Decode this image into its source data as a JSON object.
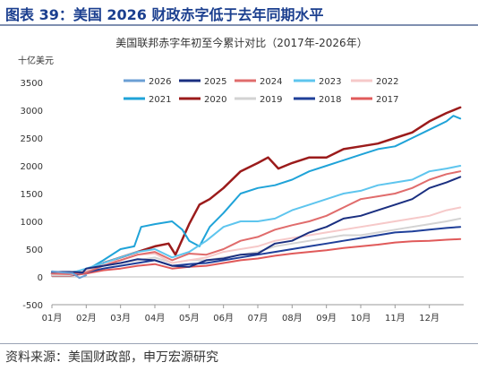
{
  "figure_title": "图表 39：美国 2026 财政赤字低于去年同期水平",
  "source": "资料来源：美国财政部，申万宏源研究",
  "chart_data": {
    "type": "line",
    "title": "美国联邦赤字年初至今累计对比（2017年-2026年）",
    "ylabel": "十亿美元",
    "ylim": [
      -500,
      3500
    ],
    "yticks": [
      -500,
      0,
      500,
      1000,
      1500,
      2000,
      2500,
      3000,
      3500
    ],
    "xlim": [
      0,
      12
    ],
    "xticks": [
      "01月",
      "02月",
      "03月",
      "04月",
      "05月",
      "06月",
      "07月",
      "08月",
      "09月",
      "10月",
      "11月",
      "12月"
    ],
    "legend_position": "top",
    "series": [
      {
        "name": "2026",
        "color": "#6b9fd4",
        "width": 2,
        "points": [
          [
            0,
            100
          ],
          [
            0.3,
            80
          ],
          [
            0.6,
            70
          ],
          [
            0.8,
            -20
          ],
          [
            1,
            30
          ]
        ]
      },
      {
        "name": "2025",
        "color": "#1a2f80",
        "width": 2,
        "points": [
          [
            0,
            90
          ],
          [
            0.5,
            90
          ],
          [
            0.9,
            80
          ],
          [
            1,
            150
          ],
          [
            1.5,
            200
          ],
          [
            2,
            250
          ],
          [
            2.5,
            320
          ],
          [
            3,
            300
          ],
          [
            3.5,
            200
          ],
          [
            4,
            180
          ],
          [
            4.5,
            300
          ],
          [
            5,
            330
          ],
          [
            5.5,
            400
          ],
          [
            6,
            420
          ],
          [
            6.5,
            600
          ],
          [
            7,
            650
          ],
          [
            7.5,
            800
          ],
          [
            8,
            900
          ],
          [
            8.5,
            1050
          ],
          [
            9,
            1100
          ],
          [
            9.5,
            1200
          ],
          [
            10,
            1300
          ],
          [
            10.5,
            1400
          ],
          [
            11,
            1600
          ],
          [
            11.5,
            1700
          ],
          [
            11.9,
            1800
          ]
        ]
      },
      {
        "name": "2024",
        "color": "#e06c6c",
        "width": 2,
        "points": [
          [
            0,
            60
          ],
          [
            0.5,
            50
          ],
          [
            1,
            80
          ],
          [
            1.5,
            200
          ],
          [
            2,
            300
          ],
          [
            2.5,
            400
          ],
          [
            3,
            450
          ],
          [
            3.5,
            300
          ],
          [
            4,
            420
          ],
          [
            4.5,
            400
          ],
          [
            5,
            500
          ],
          [
            5.5,
            650
          ],
          [
            6,
            720
          ],
          [
            6.5,
            850
          ],
          [
            7,
            930
          ],
          [
            7.5,
            1000
          ],
          [
            8,
            1100
          ],
          [
            8.5,
            1250
          ],
          [
            9,
            1400
          ],
          [
            9.5,
            1450
          ],
          [
            10,
            1500
          ],
          [
            10.5,
            1600
          ],
          [
            11,
            1750
          ],
          [
            11.5,
            1850
          ],
          [
            11.9,
            1900
          ]
        ]
      },
      {
        "name": "2023",
        "color": "#5ec5ee",
        "width": 2,
        "points": [
          [
            0,
            60
          ],
          [
            0.5,
            60
          ],
          [
            1,
            150
          ],
          [
            1.5,
            250
          ],
          [
            2,
            350
          ],
          [
            2.5,
            450
          ],
          [
            3,
            500
          ],
          [
            3.5,
            350
          ],
          [
            4,
            450
          ],
          [
            4.5,
            650
          ],
          [
            5,
            900
          ],
          [
            5.5,
            1000
          ],
          [
            6,
            1000
          ],
          [
            6.5,
            1050
          ],
          [
            7,
            1200
          ],
          [
            7.5,
            1300
          ],
          [
            8,
            1400
          ],
          [
            8.5,
            1500
          ],
          [
            9,
            1550
          ],
          [
            9.5,
            1650
          ],
          [
            10,
            1700
          ],
          [
            10.5,
            1750
          ],
          [
            11,
            1900
          ],
          [
            11.5,
            1950
          ],
          [
            11.9,
            2000
          ]
        ]
      },
      {
        "name": "2022",
        "color": "#f6c9c9",
        "width": 2,
        "points": [
          [
            0,
            50
          ],
          [
            0.5,
            50
          ],
          [
            1,
            120
          ],
          [
            1.5,
            250
          ],
          [
            2,
            300
          ],
          [
            2.5,
            400
          ],
          [
            3,
            420
          ],
          [
            3.5,
            250
          ],
          [
            4,
            300
          ],
          [
            4.5,
            350
          ],
          [
            5,
            450
          ],
          [
            5.5,
            500
          ],
          [
            6,
            550
          ],
          [
            6.5,
            650
          ],
          [
            7,
            700
          ],
          [
            7.5,
            750
          ],
          [
            8,
            800
          ],
          [
            8.5,
            850
          ],
          [
            9,
            900
          ],
          [
            9.5,
            950
          ],
          [
            10,
            1000
          ],
          [
            10.5,
            1050
          ],
          [
            11,
            1100
          ],
          [
            11.5,
            1200
          ],
          [
            11.9,
            1250
          ]
        ]
      },
      {
        "name": "2021",
        "color": "#1fa3d8",
        "width": 2,
        "points": [
          [
            0,
            80
          ],
          [
            0.5,
            80
          ],
          [
            1,
            120
          ],
          [
            1.5,
            300
          ],
          [
            2,
            500
          ],
          [
            2.4,
            550
          ],
          [
            2.6,
            900
          ],
          [
            3,
            950
          ],
          [
            3.5,
            1000
          ],
          [
            3.8,
            850
          ],
          [
            4,
            650
          ],
          [
            4.3,
            550
          ],
          [
            4.6,
            900
          ],
          [
            5,
            1150
          ],
          [
            5.5,
            1500
          ],
          [
            6,
            1600
          ],
          [
            6.5,
            1650
          ],
          [
            7,
            1750
          ],
          [
            7.5,
            1900
          ],
          [
            8,
            2000
          ],
          [
            8.5,
            2100
          ],
          [
            9,
            2200
          ],
          [
            9.5,
            2300
          ],
          [
            10,
            2350
          ],
          [
            10.5,
            2500
          ],
          [
            11,
            2650
          ],
          [
            11.5,
            2800
          ],
          [
            11.7,
            2900
          ],
          [
            11.9,
            2850
          ]
        ]
      },
      {
        "name": "2020",
        "color": "#9b1b1b",
        "width": 2.5,
        "points": [
          [
            0,
            60
          ],
          [
            0.5,
            60
          ],
          [
            1,
            130
          ],
          [
            1.5,
            250
          ],
          [
            2,
            350
          ],
          [
            2.5,
            450
          ],
          [
            3,
            550
          ],
          [
            3.4,
            600
          ],
          [
            3.6,
            400
          ],
          [
            4,
            950
          ],
          [
            4.3,
            1300
          ],
          [
            4.6,
            1400
          ],
          [
            5,
            1600
          ],
          [
            5.5,
            1900
          ],
          [
            6,
            2050
          ],
          [
            6.3,
            2150
          ],
          [
            6.6,
            1950
          ],
          [
            7,
            2050
          ],
          [
            7.5,
            2150
          ],
          [
            8,
            2150
          ],
          [
            8.5,
            2300
          ],
          [
            9,
            2350
          ],
          [
            9.5,
            2400
          ],
          [
            10,
            2500
          ],
          [
            10.5,
            2600
          ],
          [
            11,
            2800
          ],
          [
            11.5,
            2950
          ],
          [
            11.9,
            3050
          ]
        ]
      },
      {
        "name": "2019",
        "color": "#d3d3d3",
        "width": 2,
        "points": [
          [
            0,
            30
          ],
          [
            0.5,
            30
          ],
          [
            1,
            100
          ],
          [
            1.5,
            200
          ],
          [
            2,
            250
          ],
          [
            2.5,
            300
          ],
          [
            3,
            350
          ],
          [
            3.5,
            250
          ],
          [
            4,
            300
          ],
          [
            4.5,
            300
          ],
          [
            5,
            350
          ],
          [
            5.5,
            400
          ],
          [
            6,
            450
          ],
          [
            6.5,
            550
          ],
          [
            7,
            600
          ],
          [
            7.5,
            650
          ],
          [
            8,
            700
          ],
          [
            8.5,
            750
          ],
          [
            9,
            750
          ],
          [
            9.5,
            800
          ],
          [
            10,
            850
          ],
          [
            10.5,
            900
          ],
          [
            11,
            950
          ],
          [
            11.5,
            1000
          ],
          [
            11.9,
            1050
          ]
        ]
      },
      {
        "name": "2018",
        "color": "#1f3f99",
        "width": 2,
        "points": [
          [
            0,
            30
          ],
          [
            0.5,
            30
          ],
          [
            1,
            80
          ],
          [
            1.5,
            150
          ],
          [
            2,
            200
          ],
          [
            2.5,
            250
          ],
          [
            3,
            300
          ],
          [
            3.5,
            200
          ],
          [
            4,
            230
          ],
          [
            4.5,
            250
          ],
          [
            5,
            300
          ],
          [
            5.5,
            350
          ],
          [
            6,
            400
          ],
          [
            6.5,
            450
          ],
          [
            7,
            500
          ],
          [
            7.5,
            550
          ],
          [
            8,
            600
          ],
          [
            8.5,
            650
          ],
          [
            9,
            700
          ],
          [
            9.5,
            750
          ],
          [
            10,
            800
          ],
          [
            10.5,
            820
          ],
          [
            11,
            850
          ],
          [
            11.5,
            880
          ],
          [
            11.9,
            900
          ]
        ]
      },
      {
        "name": "2017",
        "color": "#e05a5a",
        "width": 2,
        "points": [
          [
            0,
            20
          ],
          [
            0.5,
            20
          ],
          [
            1,
            60
          ],
          [
            1.5,
            120
          ],
          [
            2,
            150
          ],
          [
            2.5,
            200
          ],
          [
            3,
            230
          ],
          [
            3.5,
            150
          ],
          [
            4,
            180
          ],
          [
            4.5,
            200
          ],
          [
            5,
            250
          ],
          [
            5.5,
            300
          ],
          [
            6,
            330
          ],
          [
            6.5,
            380
          ],
          [
            7,
            420
          ],
          [
            7.5,
            450
          ],
          [
            8,
            480
          ],
          [
            8.5,
            520
          ],
          [
            9,
            550
          ],
          [
            9.5,
            580
          ],
          [
            10,
            620
          ],
          [
            10.5,
            640
          ],
          [
            11,
            650
          ],
          [
            11.5,
            670
          ],
          [
            11.9,
            680
          ]
        ]
      }
    ]
  }
}
